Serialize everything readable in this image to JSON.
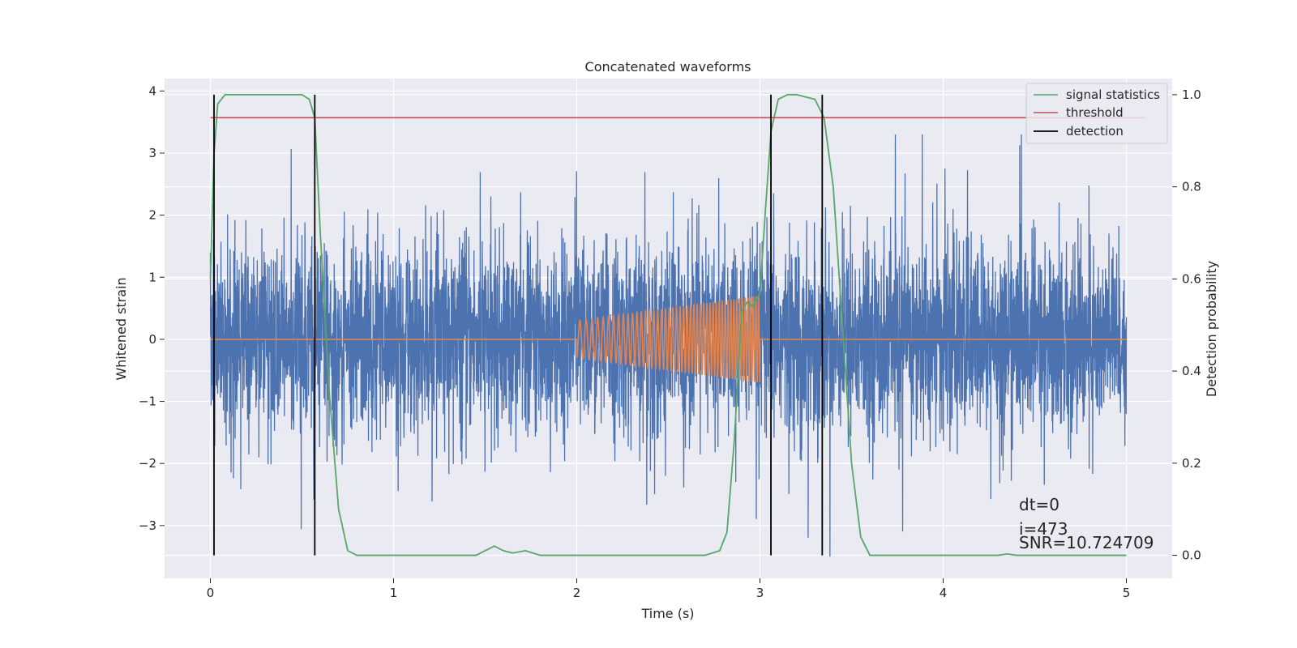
{
  "chart_data": {
    "type": "line",
    "title": "Concatenated waveforms",
    "xlabel": "Time (s)",
    "ylabel": "Whitened strain",
    "ylabel_right": "Detection probability",
    "xlim": [
      -0.25,
      5.25
    ],
    "ylim": [
      -3.85,
      4.2
    ],
    "ylim_right": [
      -0.05,
      1.035
    ],
    "x_ticks": [
      0,
      1,
      2,
      3,
      4,
      5
    ],
    "x_tick_labels": [
      "0",
      "1",
      "2",
      "3",
      "4",
      "5"
    ],
    "y_ticks": [
      -3,
      -2,
      -1,
      0,
      1,
      2,
      3,
      4
    ],
    "y_tick_labels": [
      "−3",
      "−2",
      "−1",
      "0",
      "1",
      "2",
      "3",
      "4"
    ],
    "y_right_ticks": [
      0.0,
      0.2,
      0.4,
      0.6,
      0.8,
      1.0
    ],
    "y_right_tick_labels": [
      "0.0",
      "0.2",
      "0.4",
      "0.6",
      "0.8",
      "1.0"
    ],
    "grid": true,
    "legend_position": "top-right",
    "colors": {
      "strain": "#4c72b0",
      "signal": "#dd8452",
      "signal_statistics": "#55a868",
      "threshold": "#c44e52",
      "detection": "#000000",
      "axes_bg": "#eaeaf2",
      "grid": "#ffffff"
    },
    "series": [
      {
        "name": "strain (noise)",
        "axis": "left",
        "x_range": [
          0,
          5
        ],
        "envelope_typical": 0.9,
        "peak_range": [
          -3.5,
          3.3
        ]
      },
      {
        "name": "injected chirp",
        "axis": "left",
        "x_start": 2.0,
        "x_end": 3.0,
        "amplitude_start": 0.3,
        "amplitude_end": 0.7,
        "freq_start_hz": 28,
        "freq_end_hz": 70
      },
      {
        "name": "signal statistics",
        "axis": "right",
        "x": [
          0.0,
          0.02,
          0.04,
          0.08,
          0.12,
          0.5,
          0.54,
          0.57,
          0.6,
          0.65,
          0.7,
          0.75,
          0.8,
          1.45,
          1.55,
          1.6,
          1.65,
          1.72,
          1.8,
          2.7,
          2.78,
          2.82,
          2.86,
          2.9,
          2.93,
          2.96,
          3.0,
          3.03,
          3.06,
          3.1,
          3.15,
          3.2,
          3.3,
          3.35,
          3.4,
          3.45,
          3.5,
          3.55,
          3.6,
          4.3,
          4.35,
          4.4,
          4.9,
          5.0
        ],
        "y": [
          0.6,
          0.87,
          0.98,
          1.0,
          1.0,
          1.0,
          0.99,
          0.95,
          0.7,
          0.35,
          0.1,
          0.01,
          0.0,
          0.0,
          0.02,
          0.01,
          0.005,
          0.01,
          0.0,
          0.0,
          0.01,
          0.05,
          0.25,
          0.53,
          0.55,
          0.54,
          0.57,
          0.75,
          0.92,
          0.99,
          1.0,
          1.0,
          0.99,
          0.95,
          0.8,
          0.5,
          0.2,
          0.04,
          0.0,
          0.0,
          0.003,
          0.0,
          0.0,
          0.0
        ]
      },
      {
        "name": "threshold",
        "axis": "right",
        "x": [
          0,
          5.1
        ],
        "y": [
          0.95,
          0.95
        ]
      },
      {
        "name": "detection",
        "axis": "right",
        "vlines_x": [
          0.02,
          0.57,
          3.06,
          3.34
        ],
        "y_span": [
          0.0,
          1.0
        ]
      }
    ],
    "legend": [
      "signal statistics",
      "threshold",
      "detection"
    ],
    "annotations": {
      "dt": "dt=0",
      "i": "i=473",
      "snr": "SNR=10.724709"
    }
  }
}
